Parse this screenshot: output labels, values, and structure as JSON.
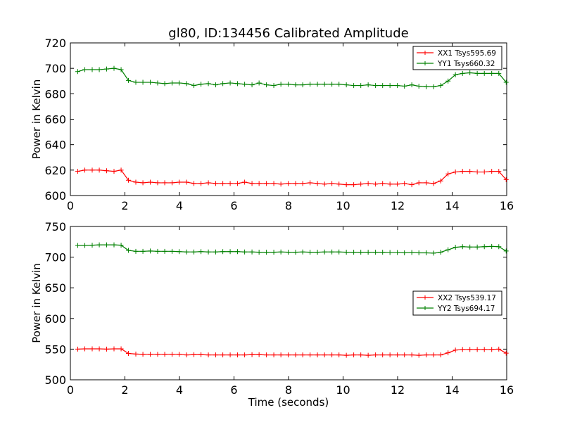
{
  "title": "gl80, ID:134456 Calibrated Amplitude",
  "chart_data": [
    {
      "type": "line",
      "title": "gl80, ID:134456 Calibrated Amplitude",
      "xlabel": "",
      "ylabel": "Power in Kelvin",
      "xlim": [
        0,
        16
      ],
      "ylim": [
        600,
        720
      ],
      "xticks": [
        0,
        2,
        4,
        6,
        8,
        10,
        12,
        14,
        16
      ],
      "yticks": [
        600,
        620,
        640,
        660,
        680,
        700,
        720
      ],
      "grid": false,
      "legend_position": "top-right",
      "x": [
        0.27,
        0.53,
        0.8,
        1.06,
        1.33,
        1.6,
        1.86,
        2.13,
        2.4,
        2.66,
        2.93,
        3.2,
        3.46,
        3.73,
        3.99,
        4.26,
        4.53,
        4.79,
        5.06,
        5.33,
        5.59,
        5.86,
        6.13,
        6.39,
        6.66,
        6.92,
        7.19,
        7.46,
        7.72,
        7.99,
        8.26,
        8.52,
        8.79,
        9.06,
        9.32,
        9.59,
        9.85,
        10.12,
        10.39,
        10.65,
        10.92,
        11.19,
        11.45,
        11.72,
        11.99,
        12.25,
        12.52,
        12.78,
        13.05,
        13.32,
        13.58,
        13.85,
        14.12,
        14.38,
        14.65,
        14.92,
        15.18,
        15.45,
        15.71,
        15.98
      ],
      "series": [
        {
          "name": "XX1 Tsys595.69",
          "color": "#ff0000",
          "values": [
            619,
            620,
            620,
            620,
            619.5,
            619,
            620,
            612,
            610.5,
            610,
            610.5,
            610,
            610,
            610,
            610.5,
            610.5,
            609.5,
            609.5,
            610,
            609.5,
            609.5,
            609.5,
            609.5,
            610.5,
            609.5,
            609.5,
            609.5,
            609.5,
            609,
            609.5,
            609.5,
            609.5,
            610,
            609.5,
            609,
            609.5,
            609,
            608.5,
            608.5,
            609,
            609.5,
            609,
            609.5,
            609,
            609,
            609.5,
            608.5,
            610,
            610,
            609.5,
            611.5,
            617,
            618.5,
            619,
            619,
            618.5,
            618.5,
            619,
            619,
            612.5
          ]
        },
        {
          "name": "YY1 Tsys660.32",
          "color": "#008000",
          "values": [
            697.5,
            699,
            699,
            699,
            699.5,
            700,
            699,
            690.5,
            689,
            689,
            689,
            688.5,
            688,
            688.5,
            688.5,
            688,
            686.5,
            687.5,
            688,
            687,
            688,
            688.5,
            688,
            687.5,
            687,
            688.5,
            687,
            686.5,
            687.5,
            687.5,
            687,
            687,
            687.5,
            687.5,
            687.5,
            687.5,
            687.5,
            687,
            686.5,
            686.5,
            687,
            686.5,
            686.5,
            686.5,
            686.5,
            686,
            687,
            686,
            685.5,
            685.5,
            686.5,
            690,
            695,
            696,
            696.5,
            696,
            696,
            696,
            696,
            689
          ]
        }
      ]
    },
    {
      "type": "line",
      "title": "",
      "xlabel": "Time (seconds)",
      "ylabel": "Power in Kelvin",
      "xlim": [
        0,
        16
      ],
      "ylim": [
        500,
        750
      ],
      "xticks": [
        0,
        2,
        4,
        6,
        8,
        10,
        12,
        14,
        16
      ],
      "yticks": [
        500,
        550,
        600,
        650,
        700,
        750
      ],
      "grid": false,
      "legend_position": "center-right",
      "x": [
        0.27,
        0.53,
        0.8,
        1.06,
        1.33,
        1.6,
        1.86,
        2.13,
        2.4,
        2.66,
        2.93,
        3.2,
        3.46,
        3.73,
        3.99,
        4.26,
        4.53,
        4.79,
        5.06,
        5.33,
        5.59,
        5.86,
        6.13,
        6.39,
        6.66,
        6.92,
        7.19,
        7.46,
        7.72,
        7.99,
        8.26,
        8.52,
        8.79,
        9.06,
        9.32,
        9.59,
        9.85,
        10.12,
        10.39,
        10.65,
        10.92,
        11.19,
        11.45,
        11.72,
        11.99,
        12.25,
        12.52,
        12.78,
        13.05,
        13.32,
        13.58,
        13.85,
        14.12,
        14.38,
        14.65,
        14.92,
        15.18,
        15.45,
        15.71,
        15.98
      ],
      "series": [
        {
          "name": "XX2 Tsys539.17",
          "color": "#ff0000",
          "values": [
            550,
            550.5,
            550.5,
            550.5,
            550,
            550.5,
            550.5,
            543,
            542,
            541.5,
            541.5,
            541.5,
            541.5,
            541.5,
            541.5,
            540.5,
            541,
            541,
            540.5,
            540.5,
            540.5,
            540.5,
            540.5,
            540.5,
            541,
            541,
            540.5,
            540.5,
            540.5,
            540.5,
            540.5,
            540.5,
            540.5,
            540.5,
            540.5,
            540.5,
            540.5,
            540,
            540.5,
            540.5,
            540,
            540.5,
            540.5,
            540.5,
            540.5,
            540.5,
            540.5,
            540,
            540.5,
            540.5,
            540.5,
            544,
            548.5,
            549.5,
            549.5,
            549.5,
            549.5,
            549.5,
            550,
            543.5
          ]
        },
        {
          "name": "YY2 Tsys694.17",
          "color": "#008000",
          "values": [
            719,
            719,
            719.5,
            720,
            720,
            720,
            719.5,
            711,
            709.5,
            709.5,
            710,
            709.5,
            709.5,
            709.5,
            709,
            708.5,
            708.5,
            709,
            708.5,
            708.5,
            709,
            709,
            709,
            708.5,
            708.5,
            708,
            708,
            708,
            708.5,
            708,
            708,
            708.5,
            708,
            708,
            708.5,
            708.5,
            708.5,
            708,
            708,
            708,
            708,
            708,
            708,
            707.5,
            707.5,
            707,
            707.5,
            707,
            707,
            706.5,
            708,
            712,
            716,
            717,
            716.5,
            716.5,
            717,
            717.5,
            717,
            710
          ]
        }
      ]
    }
  ]
}
